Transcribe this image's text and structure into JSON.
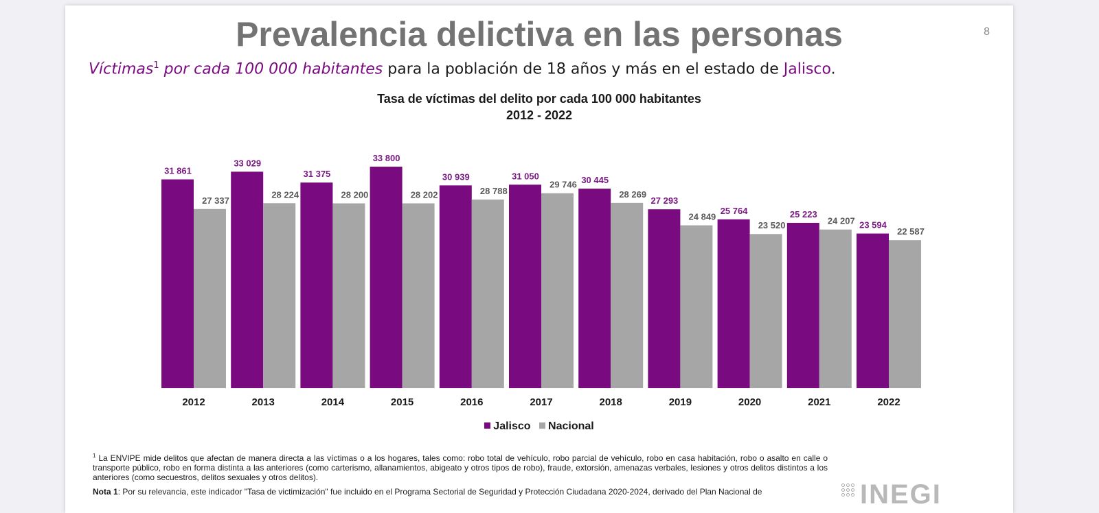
{
  "slide": {
    "title": "Prevalencia delictiva en las personas",
    "page_number": "8",
    "subtitle": {
      "victimas": "Víctimas",
      "sup": "1",
      "per_habitantes": " por cada 100 000 habitantes",
      "middle": " para la población de 18 años y más en el estado de ",
      "state": "Jalisco",
      "end": "."
    },
    "footnote": {
      "marker": "1",
      "text": " La ENVIPE mide delitos que afectan de manera directa a las víctimas o a los hogares, tales como: robo total de vehículo, robo parcial de vehículo, robo en casa habitación, robo o asalto en calle o transporte público, robo en forma distinta a las anteriores (como carterismo, allanamientos, abigeato y otros tipos de robo), fraude, extorsión, amenazas verbales, lesiones y otros delitos distintos a los anteriores (como secuestros, delitos sexuales y otros delitos)."
    },
    "nota": {
      "label": "Nota 1",
      "text": ": Por su relevancia, este indicador \"Tasa de victimización\" fue incluido en el Programa Sectorial de Seguridad y Protección Ciudadana 2020-2024, derivado del Plan Nacional de"
    },
    "logo_text": "INEGI"
  },
  "colors": {
    "jalisco": "#7a0a80",
    "nacional": "#a6a6a6",
    "jalisco_label": "#7a1a82",
    "nacional_label": "#595959"
  },
  "chart_data": {
    "type": "bar",
    "title": "Tasa de víctimas del delito por cada 100 000 habitantes",
    "subtitle": "2012 - 2022",
    "xlabel": "",
    "ylabel": "",
    "ylim": [
      0,
      35000
    ],
    "grid": false,
    "legend_position": "bottom",
    "categories": [
      "2012",
      "2013",
      "2014",
      "2015",
      "2016",
      "2017",
      "2018",
      "2019",
      "2020",
      "2021",
      "2022"
    ],
    "series": [
      {
        "name": "Jalisco",
        "values": [
          31861,
          33029,
          31375,
          33800,
          30939,
          31050,
          30445,
          27293,
          25764,
          25223,
          23594
        ],
        "labels": [
          "31 861",
          "33 029",
          "31 375",
          "33 800",
          "30 939",
          "31 050",
          "30 445",
          "27 293",
          "25 764",
          "25 223",
          "23 594"
        ]
      },
      {
        "name": "Nacional",
        "values": [
          27337,
          28224,
          28200,
          28202,
          28788,
          29746,
          28269,
          24849,
          23520,
          24207,
          22587
        ],
        "labels": [
          "27 337",
          "28 224",
          "28 200",
          "28 202",
          "28 788",
          "29 746",
          "28 269",
          "24 849",
          "23 520",
          "24 207",
          "22 587"
        ]
      }
    ]
  }
}
